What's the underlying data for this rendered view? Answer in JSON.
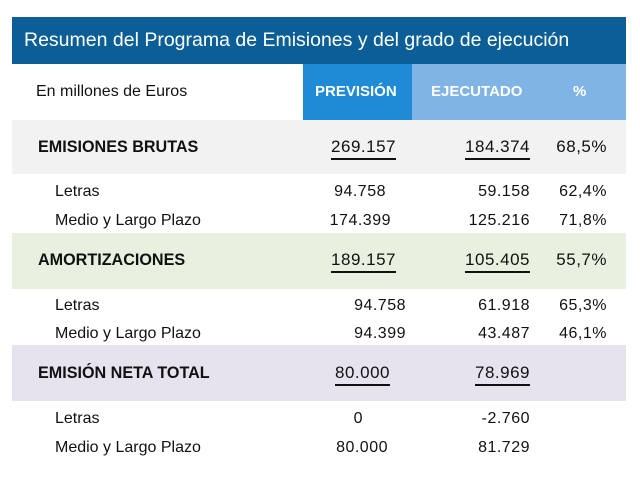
{
  "title": "Resumen del Programa de Emisiones y del grado de ejecución",
  "header": {
    "unit": "En millones de Euros",
    "prevision": "PREVISIÓN",
    "ejecutado": "EJECUTADO",
    "percent": "%"
  },
  "colors": {
    "title_bar": "#0b5e96",
    "prevision_header": "#1f8ad6",
    "ejecutado_header": "#7fb4e4",
    "brutas_row": "#f2f2f2",
    "amortizaciones_row": "#e8f0df",
    "neta_row": "#e6e2ee"
  },
  "sections": [
    {
      "label": "EMISIONES BRUTAS",
      "prevision": "269.157",
      "ejecutado": "184.374",
      "percent": "68,5%",
      "rows": [
        {
          "label": "Letras",
          "prevision": "94.758",
          "ejecutado": "59.158",
          "percent": "62,4%"
        },
        {
          "label": "Medio y Largo Plazo",
          "prevision": "174.399",
          "ejecutado": "125.216",
          "percent": "71,8%"
        }
      ]
    },
    {
      "label": "AMORTIZACIONES",
      "prevision": "189.157",
      "ejecutado": "105.405",
      "percent": "55,7%",
      "rows": [
        {
          "label": "Letras",
          "prevision": "94.758",
          "ejecutado": "61.918",
          "percent": "65,3%"
        },
        {
          "label": "Medio y Largo Plazo",
          "prevision": "94.399",
          "ejecutado": "43.487",
          "percent": "46,1%"
        }
      ]
    },
    {
      "label": "EMISIÓN NETA TOTAL",
      "prevision": "80.000",
      "ejecutado": "78.969",
      "rows": [
        {
          "label": "Letras",
          "prevision": "0",
          "ejecutado": "-2.760"
        },
        {
          "label": "Medio y Largo Plazo",
          "prevision": "80.000",
          "ejecutado": "81.729"
        }
      ]
    }
  ]
}
